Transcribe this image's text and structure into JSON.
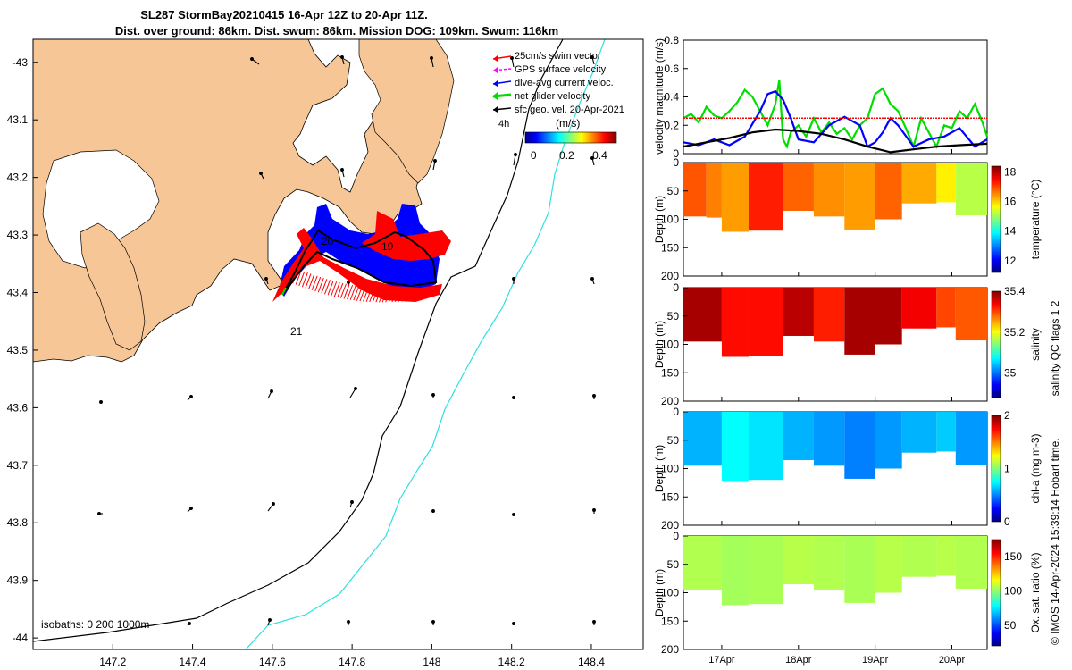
{
  "title": {
    "line1": "SL287 StormBay20210415 16-Apr 12Z to 20-Apr 11Z.",
    "line2": "Dist. over ground: 86km. Dist. swum: 86km. Mission DOG: 109km. Swum: 116km"
  },
  "map": {
    "x_ticks": [
      "147.2",
      "147.4",
      "147.6",
      "147.8",
      "148",
      "148.2",
      "148.4"
    ],
    "y_ticks": [
      "-43",
      "43.1",
      "43.2",
      "43.3",
      "43.4",
      "43.5",
      "43.6",
      "43.7",
      "43.8",
      "43.9",
      "-44"
    ],
    "lon_range": [
      147.0,
      148.53
    ],
    "lat_range": [
      -44.02,
      -42.96
    ],
    "isobaths_label": "isobaths: 0   200  1000m",
    "day_labels": [
      "20",
      "19",
      "21"
    ],
    "legend": [
      {
        "label": "25cm/s swim vector",
        "color": "#ff0000"
      },
      {
        "label": "GPS surface velocity",
        "color": "#ff00ff"
      },
      {
        "label": "dive-avg current veloc.",
        "color": "#0000ff"
      },
      {
        "label": "net glider velocity",
        "color": "#00dd00"
      },
      {
        "label": "sfc geo. vel. 20-Apr-2021",
        "color": "#000000"
      }
    ],
    "colorbar": {
      "label": "(m/s)",
      "hours": "4h",
      "ticks": [
        "0",
        "0.2",
        "0.4"
      ],
      "range": [
        -0.05,
        0.5
      ]
    },
    "colors": {
      "land": "#f7c697",
      "isobath_200": "#000000",
      "isobath_1000": "#2ee0e0",
      "track_blue": "#0000ff",
      "track_red": "#ff0000"
    }
  },
  "chart_data": [
    {
      "type": "line",
      "title": "",
      "xlabel": "",
      "ylabel": "velocity magnitude (m/s)",
      "x_tick_labels": [
        "17Apr",
        "18Apr",
        "19Apr",
        "20Apr"
      ],
      "x_ticks_day": [
        17,
        18,
        19,
        20
      ],
      "xlim": [
        16.5,
        20.46
      ],
      "ylim": [
        0,
        0.8
      ],
      "y_tick_labels": [
        "0",
        "0.2",
        "0.4",
        "0.6",
        "0.8"
      ],
      "series": [
        {
          "name": "net glider velocity",
          "color": "#00dd00",
          "x": [
            16.5,
            16.6,
            16.7,
            16.8,
            16.9,
            17.0,
            17.1,
            17.2,
            17.3,
            17.4,
            17.5,
            17.6,
            17.7,
            17.75,
            17.8,
            17.85,
            17.9,
            18.0,
            18.1,
            18.2,
            18.3,
            18.4,
            18.5,
            18.6,
            18.7,
            18.8,
            18.9,
            19.0,
            19.1,
            19.2,
            19.3,
            19.4,
            19.5,
            19.6,
            19.7,
            19.8,
            19.9,
            20.0,
            20.1,
            20.2,
            20.3,
            20.4,
            20.46
          ],
          "y": [
            0.25,
            0.28,
            0.22,
            0.33,
            0.27,
            0.25,
            0.3,
            0.36,
            0.45,
            0.4,
            0.3,
            0.2,
            0.35,
            0.52,
            0.1,
            0.05,
            0.15,
            0.2,
            0.12,
            0.25,
            0.15,
            0.22,
            0.14,
            0.18,
            0.1,
            0.2,
            0.25,
            0.42,
            0.46,
            0.35,
            0.3,
            0.18,
            0.05,
            0.25,
            0.15,
            0.05,
            0.2,
            0.18,
            0.3,
            0.25,
            0.35,
            0.22,
            0.12
          ]
        },
        {
          "name": "dive-avg current veloc.",
          "color": "#0000ff",
          "x": [
            16.5,
            16.7,
            16.9,
            17.1,
            17.3,
            17.5,
            17.6,
            17.7,
            17.8,
            17.9,
            18.0,
            18.2,
            18.4,
            18.6,
            18.8,
            18.9,
            19.0,
            19.1,
            19.2,
            19.3,
            19.5,
            19.7,
            19.9,
            20.1,
            20.3,
            20.46
          ],
          "y": [
            0.08,
            0.06,
            0.1,
            0.06,
            0.12,
            0.3,
            0.42,
            0.44,
            0.38,
            0.25,
            0.1,
            0.08,
            0.2,
            0.26,
            0.2,
            0.05,
            0.08,
            0.15,
            0.25,
            0.2,
            0.05,
            0.1,
            0.12,
            0.18,
            0.05,
            0.1
          ]
        },
        {
          "name": "sfc geo. vel.",
          "color": "#000000",
          "x": [
            16.5,
            16.8,
            17.1,
            17.4,
            17.7,
            18.0,
            18.3,
            18.6,
            18.9,
            19.2,
            19.5,
            19.8,
            20.1,
            20.46
          ],
          "y": [
            0.05,
            0.08,
            0.11,
            0.15,
            0.17,
            0.16,
            0.14,
            0.1,
            0.05,
            0.01,
            0.03,
            0.05,
            0.06,
            0.07
          ]
        },
        {
          "name": "25cm/s reference",
          "color": "#ff0000",
          "x": [
            16.5,
            20.46
          ],
          "y": [
            0.25,
            0.25
          ]
        }
      ]
    },
    {
      "type": "heatmap",
      "ylabel": "Depth (m)",
      "colorbar_label": "temperature (°C)",
      "ylim": [
        200,
        0
      ],
      "y_tick_labels": [
        "0",
        "50",
        "100",
        "150",
        "200"
      ],
      "clim": [
        11.2,
        18.4
      ],
      "colorbar_ticks": [
        "12",
        "14",
        "16",
        "18"
      ],
      "segments": [
        {
          "x0": 16.5,
          "x1": 16.8,
          "maxdepth": 95,
          "value": 16.9
        },
        {
          "x0": 16.8,
          "x1": 17.0,
          "maxdepth": 97,
          "value": 16.6
        },
        {
          "x0": 17.0,
          "x1": 17.35,
          "maxdepth": 122,
          "value": 16.4
        },
        {
          "x0": 17.35,
          "x1": 17.8,
          "maxdepth": 120,
          "value": 17.3
        },
        {
          "x0": 17.8,
          "x1": 18.2,
          "maxdepth": 85,
          "value": 16.8
        },
        {
          "x0": 18.2,
          "x1": 18.6,
          "maxdepth": 95,
          "value": 16.5
        },
        {
          "x0": 18.6,
          "x1": 19.0,
          "maxdepth": 118,
          "value": 16.4
        },
        {
          "x0": 19.0,
          "x1": 19.35,
          "maxdepth": 100,
          "value": 16.8
        },
        {
          "x0": 19.35,
          "x1": 19.8,
          "maxdepth": 72,
          "value": 16.3
        },
        {
          "x0": 19.8,
          "x1": 20.05,
          "maxdepth": 70,
          "value": 15.8
        },
        {
          "x0": 20.05,
          "x1": 20.46,
          "maxdepth": 93,
          "value": 15.2
        }
      ]
    },
    {
      "type": "heatmap",
      "ylabel": "Depth (m)",
      "colorbar_label": "salinity",
      "ylim": [
        200,
        0
      ],
      "y_tick_labels": [
        "0",
        "50",
        "100",
        "150",
        "200"
      ],
      "clim": [
        34.88,
        35.4
      ],
      "colorbar_ticks": [
        "35",
        "35.2",
        "35.4"
      ],
      "segments": [
        {
          "x0": 16.5,
          "x1": 17.0,
          "maxdepth": 95,
          "value": 35.38
        },
        {
          "x0": 17.0,
          "x1": 17.35,
          "maxdepth": 122,
          "value": 35.33
        },
        {
          "x0": 17.35,
          "x1": 17.8,
          "maxdepth": 120,
          "value": 35.33
        },
        {
          "x0": 17.8,
          "x1": 18.2,
          "maxdepth": 85,
          "value": 35.37
        },
        {
          "x0": 18.2,
          "x1": 18.6,
          "maxdepth": 95,
          "value": 35.32
        },
        {
          "x0": 18.6,
          "x1": 19.0,
          "maxdepth": 118,
          "value": 35.38
        },
        {
          "x0": 19.0,
          "x1": 19.35,
          "maxdepth": 100,
          "value": 35.38
        },
        {
          "x0": 19.35,
          "x1": 19.8,
          "maxdepth": 72,
          "value": 35.34
        },
        {
          "x0": 19.8,
          "x1": 20.05,
          "maxdepth": 70,
          "value": 35.3
        },
        {
          "x0": 20.05,
          "x1": 20.46,
          "maxdepth": 93,
          "value": 35.29
        }
      ]
    },
    {
      "type": "heatmap",
      "ylabel": "Depth (m)",
      "colorbar_label": "chl-a (mg m-3)",
      "ylim": [
        200,
        0
      ],
      "y_tick_labels": [
        "0",
        "50",
        "100",
        "150",
        "200"
      ],
      "clim": [
        0,
        2
      ],
      "colorbar_ticks": [
        "0",
        "1",
        "2"
      ],
      "segments": [
        {
          "x0": 16.5,
          "x1": 17.0,
          "maxdepth": 95,
          "value": 0.6
        },
        {
          "x0": 17.0,
          "x1": 17.35,
          "maxdepth": 122,
          "value": 0.75
        },
        {
          "x0": 17.35,
          "x1": 17.8,
          "maxdepth": 120,
          "value": 0.7
        },
        {
          "x0": 17.8,
          "x1": 18.2,
          "maxdepth": 85,
          "value": 0.6
        },
        {
          "x0": 18.2,
          "x1": 18.6,
          "maxdepth": 95,
          "value": 0.55
        },
        {
          "x0": 18.6,
          "x1": 19.0,
          "maxdepth": 118,
          "value": 0.5
        },
        {
          "x0": 19.0,
          "x1": 19.35,
          "maxdepth": 100,
          "value": 0.55
        },
        {
          "x0": 19.35,
          "x1": 19.8,
          "maxdepth": 72,
          "value": 0.6
        },
        {
          "x0": 19.8,
          "x1": 20.05,
          "maxdepth": 70,
          "value": 0.65
        },
        {
          "x0": 20.05,
          "x1": 20.46,
          "maxdepth": 93,
          "value": 0.55
        }
      ]
    },
    {
      "type": "heatmap",
      "ylabel": "Depth (m)",
      "colorbar_label": "Ox. sat. ratio (%)",
      "ylim": [
        200,
        0
      ],
      "y_tick_labels": [
        "0",
        "50",
        "100",
        "150",
        "200"
      ],
      "clim": [
        20,
        175
      ],
      "colorbar_ticks": [
        "50",
        "100",
        "150"
      ],
      "segments": [
        {
          "x0": 16.5,
          "x1": 17.0,
          "maxdepth": 95,
          "value": 105
        },
        {
          "x0": 17.0,
          "x1": 17.35,
          "maxdepth": 122,
          "value": 103
        },
        {
          "x0": 17.35,
          "x1": 17.8,
          "maxdepth": 120,
          "value": 104
        },
        {
          "x0": 17.8,
          "x1": 18.2,
          "maxdepth": 85,
          "value": 106
        },
        {
          "x0": 18.2,
          "x1": 18.6,
          "maxdepth": 95,
          "value": 105
        },
        {
          "x0": 18.6,
          "x1": 19.0,
          "maxdepth": 118,
          "value": 104
        },
        {
          "x0": 19.0,
          "x1": 19.35,
          "maxdepth": 100,
          "value": 106
        },
        {
          "x0": 19.35,
          "x1": 19.8,
          "maxdepth": 72,
          "value": 105
        },
        {
          "x0": 19.8,
          "x1": 20.05,
          "maxdepth": 70,
          "value": 106
        },
        {
          "x0": 20.05,
          "x1": 20.46,
          "maxdepth": 93,
          "value": 105
        }
      ]
    }
  ],
  "side_note": {
    "salinity_qc": "salinity QC flags 1  2",
    "credit": "© IMOS 14-Apr-2024 15:39:14 Hobart time."
  }
}
